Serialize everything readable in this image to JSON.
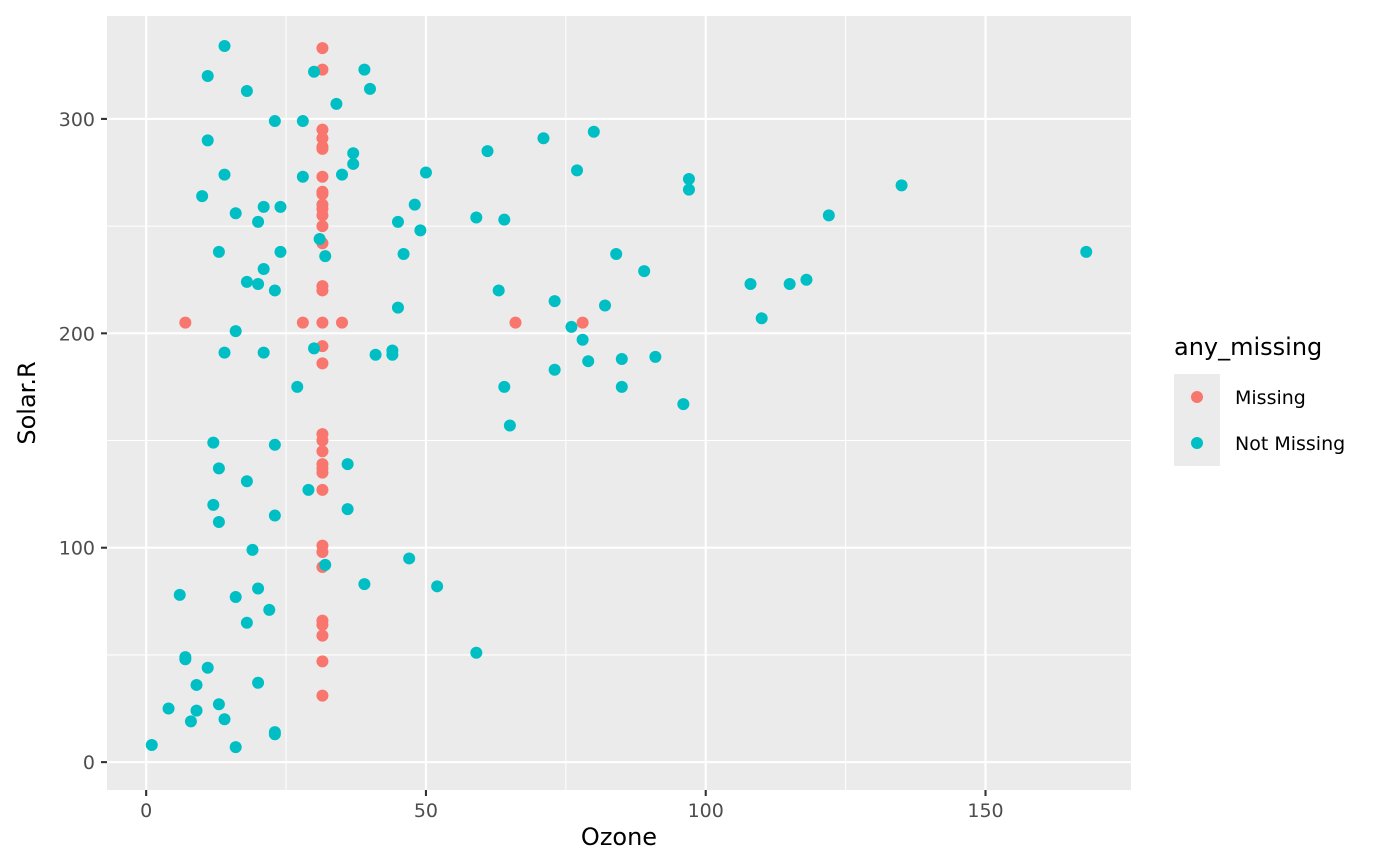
{
  "chart_data": {
    "type": "scatter",
    "title": "",
    "xlabel": "Ozone",
    "ylabel": "Solar.R",
    "xlim": [
      -7.0,
      176.0
    ],
    "ylim": [
      -13.0,
      348.0
    ],
    "x_ticks": [
      0,
      50,
      100,
      150
    ],
    "y_ticks": [
      0,
      100,
      200,
      300
    ],
    "x_minor": [
      25,
      75,
      125
    ],
    "y_minor": [
      50,
      150,
      250
    ],
    "grid": true,
    "legend": {
      "title": "any_missing",
      "placement": "right",
      "entries": [
        {
          "label": "Missing",
          "color": "#F8766D"
        },
        {
          "label": "Not Missing",
          "color": "#00BFC4"
        }
      ]
    },
    "series": [
      {
        "name": "Missing",
        "color": "#F8766D",
        "points": [
          [
            31.5,
            333
          ],
          [
            31.5,
            323
          ],
          [
            31.5,
            295
          ],
          [
            31.5,
            291
          ],
          [
            31.5,
            287
          ],
          [
            31.5,
            286
          ],
          [
            31.5,
            273
          ],
          [
            31.5,
            265
          ],
          [
            31.5,
            266
          ],
          [
            31.5,
            260
          ],
          [
            31.5,
            258
          ],
          [
            31.5,
            255
          ],
          [
            31.5,
            250
          ],
          [
            31.5,
            242
          ],
          [
            31.5,
            222
          ],
          [
            31.5,
            220
          ],
          [
            31.5,
            205
          ],
          [
            31.5,
            194
          ],
          [
            31.5,
            186
          ],
          [
            31.5,
            153
          ],
          [
            31.5,
            150
          ],
          [
            31.5,
            145
          ],
          [
            31.5,
            139
          ],
          [
            31.5,
            137
          ],
          [
            31.5,
            135
          ],
          [
            31.5,
            127
          ],
          [
            31.5,
            101
          ],
          [
            31.5,
            98
          ],
          [
            31.5,
            91
          ],
          [
            31.5,
            66
          ],
          [
            31.5,
            64
          ],
          [
            31.5,
            59
          ],
          [
            31.5,
            47
          ],
          [
            31.5,
            31
          ],
          [
            7,
            205
          ],
          [
            28,
            205
          ],
          [
            35,
            205
          ],
          [
            66,
            205
          ],
          [
            78,
            205
          ]
        ]
      },
      {
        "name": "Not Missing",
        "color": "#00BFC4",
        "points": [
          [
            41,
            190
          ],
          [
            36,
            118
          ],
          [
            12,
            149
          ],
          [
            18,
            313
          ],
          [
            28,
            299
          ],
          [
            23,
            299
          ],
          [
            19,
            99
          ],
          [
            8,
            19
          ],
          [
            7,
            48
          ],
          [
            16,
            256
          ],
          [
            11,
            290
          ],
          [
            14,
            274
          ],
          [
            18,
            65
          ],
          [
            14,
            334
          ],
          [
            34,
            307
          ],
          [
            6,
            78
          ],
          [
            30,
            322
          ],
          [
            11,
            44
          ],
          [
            1,
            8
          ],
          [
            11,
            320
          ],
          [
            4,
            25
          ],
          [
            32,
            92
          ],
          [
            23,
            13
          ],
          [
            45,
            252
          ],
          [
            115,
            223
          ],
          [
            37,
            279
          ],
          [
            29,
            127
          ],
          [
            71,
            291
          ],
          [
            39,
            323
          ],
          [
            23,
            148
          ],
          [
            21,
            191
          ],
          [
            37,
            284
          ],
          [
            20,
            37
          ],
          [
            12,
            120
          ],
          [
            13,
            137
          ],
          [
            135,
            269
          ],
          [
            49,
            248
          ],
          [
            32,
            236
          ],
          [
            64,
            175
          ],
          [
            40,
            314
          ],
          [
            77,
            276
          ],
          [
            97,
            267
          ],
          [
            97,
            272
          ],
          [
            85,
            175
          ],
          [
            10,
            264
          ],
          [
            27,
            175
          ],
          [
            7,
            49
          ],
          [
            48,
            260
          ],
          [
            35,
            274
          ],
          [
            61,
            285
          ],
          [
            79,
            187
          ],
          [
            63,
            220
          ],
          [
            16,
            7
          ],
          [
            80,
            294
          ],
          [
            108,
            223
          ],
          [
            20,
            81
          ],
          [
            52,
            82
          ],
          [
            82,
            213
          ],
          [
            50,
            275
          ],
          [
            64,
            253
          ],
          [
            59,
            254
          ],
          [
            39,
            83
          ],
          [
            9,
            24
          ],
          [
            16,
            77
          ],
          [
            122,
            255
          ],
          [
            89,
            229
          ],
          [
            110,
            207
          ],
          [
            44,
            192
          ],
          [
            28,
            273
          ],
          [
            65,
            157
          ],
          [
            22,
            71
          ],
          [
            59,
            51
          ],
          [
            23,
            115
          ],
          [
            31,
            244
          ],
          [
            44,
            190
          ],
          [
            21,
            259
          ],
          [
            9,
            36
          ],
          [
            45,
            212
          ],
          [
            168,
            238
          ],
          [
            73,
            215
          ],
          [
            76,
            203
          ],
          [
            118,
            225
          ],
          [
            84,
            237
          ],
          [
            85,
            188
          ],
          [
            96,
            167
          ],
          [
            78,
            197
          ],
          [
            73,
            183
          ],
          [
            91,
            189
          ],
          [
            47,
            95
          ],
          [
            24,
            259
          ],
          [
            13,
            27
          ],
          [
            14,
            191
          ],
          [
            18,
            131
          ],
          [
            20,
            223
          ],
          [
            13,
            238
          ],
          [
            24,
            238
          ],
          [
            16,
            201
          ],
          [
            23,
            14
          ],
          [
            36,
            139
          ],
          [
            46,
            237
          ],
          [
            21,
            230
          ],
          [
            30,
            193
          ],
          [
            13,
            112
          ],
          [
            14,
            20
          ],
          [
            18,
            224
          ],
          [
            20,
            252
          ],
          [
            23,
            220
          ]
        ]
      }
    ]
  }
}
